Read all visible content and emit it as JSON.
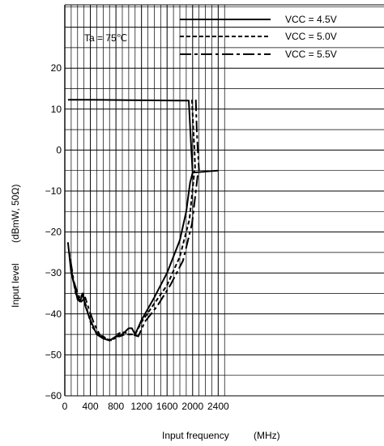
{
  "chart_data": {
    "type": "line",
    "annotation": "Ta = 75℃",
    "xlabel": "Input frequency",
    "xlabel_unit": "(MHz)",
    "ylabel": "Input level",
    "ylabel_unit": "(dBmW, 50Ω)",
    "xlim": [
      0,
      2400
    ],
    "ylim": [
      -60,
      20
    ],
    "y_visible_max": 40,
    "x_ticks": [
      "0",
      "400",
      "800",
      "1200",
      "1600",
      "2000",
      "2400"
    ],
    "x_tick_values": [
      0,
      400,
      800,
      1200,
      1600,
      2000,
      2400
    ],
    "y_ticks": [
      "20",
      "10",
      "0",
      "−10",
      "−20",
      "−30",
      "−40",
      "−50",
      "−60"
    ],
    "y_tick_values": [
      20,
      10,
      0,
      -10,
      -20,
      -30,
      -40,
      -50,
      -60
    ],
    "grid": true,
    "legend_position": "top-right",
    "series": [
      {
        "name": "VCC = 4.5V",
        "dash": "solid",
        "upper": [
          [
            50,
            12.3
          ],
          [
            300,
            12.3
          ],
          [
            1000,
            12.2
          ],
          [
            1800,
            12.1
          ],
          [
            1940,
            12.1
          ],
          [
            1980,
            0
          ],
          [
            2000,
            -5.5
          ],
          [
            2400,
            -5
          ]
        ],
        "lower": [
          [
            50,
            -22.5
          ],
          [
            100,
            -30
          ],
          [
            150,
            -33
          ],
          [
            200,
            -36.5
          ],
          [
            240,
            -37
          ],
          [
            280,
            -35
          ],
          [
            320,
            -38
          ],
          [
            400,
            -41.5
          ],
          [
            500,
            -45
          ],
          [
            600,
            -46
          ],
          [
            700,
            -46.5
          ],
          [
            800,
            -45.5
          ],
          [
            900,
            -45
          ],
          [
            1000,
            -43.5
          ],
          [
            1050,
            -43.5
          ],
          [
            1100,
            -45
          ],
          [
            1200,
            -41.5
          ],
          [
            1400,
            -36
          ],
          [
            1600,
            -30
          ],
          [
            1800,
            -22
          ],
          [
            1900,
            -15
          ],
          [
            1960,
            -8
          ],
          [
            2000,
            -5.5
          ]
        ]
      },
      {
        "name": "VCC = 5.0V",
        "dash": "short-dash",
        "upper": [
          [
            1990,
            12.3
          ],
          [
            2010,
            5
          ],
          [
            2030,
            0
          ],
          [
            2040,
            -5
          ]
        ],
        "lower": [
          [
            70,
            -25
          ],
          [
            110,
            -30
          ],
          [
            170,
            -35
          ],
          [
            230,
            -36.5
          ],
          [
            280,
            -35
          ],
          [
            340,
            -38.5
          ],
          [
            420,
            -43
          ],
          [
            520,
            -45
          ],
          [
            600,
            -45.5
          ],
          [
            700,
            -46.5
          ],
          [
            780,
            -46
          ],
          [
            820,
            -45
          ],
          [
            880,
            -44.5
          ],
          [
            940,
            -44.5
          ],
          [
            1000,
            -45
          ],
          [
            1100,
            -45
          ],
          [
            1200,
            -42
          ],
          [
            1400,
            -37.5
          ],
          [
            1600,
            -33
          ],
          [
            1800,
            -26
          ],
          [
            1950,
            -17
          ],
          [
            2030,
            -5
          ]
        ]
      },
      {
        "name": "VCC = 5.5V",
        "dash": "long-dash",
        "upper": [
          [
            2050,
            12.3
          ],
          [
            2065,
            5
          ],
          [
            2080,
            0
          ],
          [
            2100,
            -5
          ]
        ],
        "lower": [
          [
            90,
            -27
          ],
          [
            140,
            -32
          ],
          [
            200,
            -35
          ],
          [
            260,
            -37
          ],
          [
            320,
            -36
          ],
          [
            380,
            -39
          ],
          [
            460,
            -42.5
          ],
          [
            560,
            -45.5
          ],
          [
            660,
            -46
          ],
          [
            740,
            -46.5
          ],
          [
            800,
            -45.5
          ],
          [
            860,
            -45.5
          ],
          [
            940,
            -45
          ],
          [
            1050,
            -45
          ],
          [
            1150,
            -45.5
          ],
          [
            1250,
            -42
          ],
          [
            1450,
            -38
          ],
          [
            1650,
            -33
          ],
          [
            1850,
            -27
          ],
          [
            1990,
            -18
          ],
          [
            2080,
            -6
          ]
        ]
      }
    ]
  }
}
